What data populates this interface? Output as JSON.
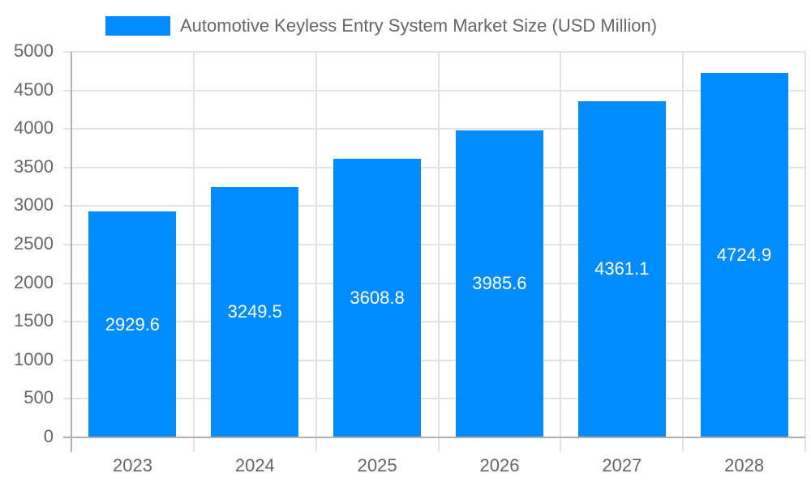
{
  "chart_data": {
    "type": "bar",
    "title": "",
    "legend": [
      {
        "label": "Automotive Keyless Entry System Market Size (USD Million)",
        "color": "#008cff"
      }
    ],
    "legend_position": "top",
    "categories": [
      "2023",
      "2024",
      "2025",
      "2026",
      "2027",
      "2028"
    ],
    "series": [
      {
        "name": "Automotive Keyless Entry System Market Size (USD Million)",
        "values": [
          2929.6,
          3249.5,
          3608.8,
          3985.6,
          4361.1,
          4724.9
        ],
        "color": "#008cff"
      }
    ],
    "data_labels": [
      "2929.6",
      "3249.5",
      "3608.8",
      "3985.6",
      "4361.1",
      "4724.9"
    ],
    "xlabel": "",
    "ylabel": "",
    "ylim": [
      0,
      5000
    ],
    "yticks": [
      "0",
      "500",
      "1000",
      "1500",
      "2000",
      "2500",
      "3000",
      "3500",
      "4000",
      "4500",
      "5000"
    ],
    "grid": true
  }
}
